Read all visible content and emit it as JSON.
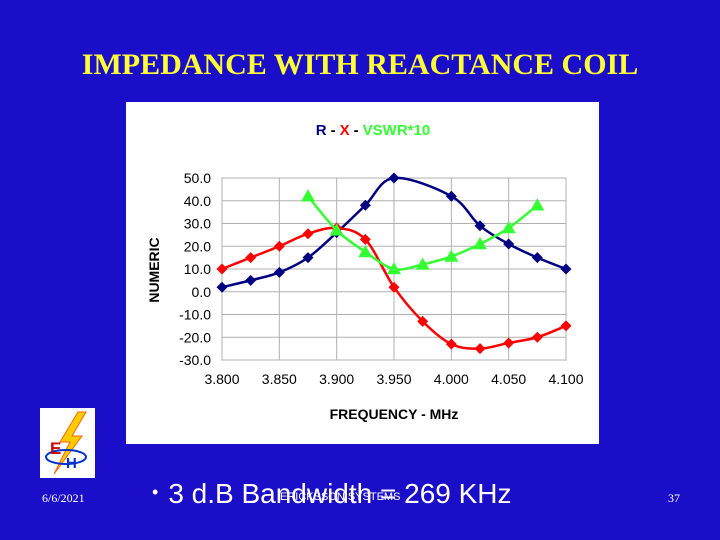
{
  "slide": {
    "title": "IMPEDANCE WITH REACTANCE COIL",
    "bullet": "3 d.B Bandwidth = 269 KHz",
    "footer_date": "6/6/2021",
    "footer_center": "ERICKSSON SYSTEMS",
    "page_number": "37",
    "logo_letters": "E H"
  },
  "chart_data": {
    "type": "line",
    "title": {
      "r": "R",
      "sep": "-",
      "x": "X",
      "vswr": "VSWR*10"
    },
    "xlabel": "FREQUENCY - MHz",
    "ylabel": "NUMERIC",
    "xlim": [
      3.8,
      4.1
    ],
    "ylim": [
      -30,
      50
    ],
    "x_ticks": [
      3.8,
      3.85,
      3.9,
      3.95,
      4.0,
      4.05,
      4.1
    ],
    "x_tick_labels": [
      "3.800",
      "3.850",
      "3.900",
      "3.950",
      "4.000",
      "4.050",
      "4.100"
    ],
    "y_ticks": [
      50,
      40,
      30,
      20,
      10,
      0,
      -10,
      -20,
      -30
    ],
    "y_tick_labels": [
      "50.0",
      "40.0",
      "30.0",
      "20.0",
      "10.0",
      "0.0",
      "-10.0",
      "-20.0",
      "-30.0"
    ],
    "grid": true,
    "series": [
      {
        "name": "R",
        "color": "#000080",
        "marker": "diamond",
        "x": [
          3.8,
          3.825,
          3.85,
          3.875,
          3.9,
          3.925,
          3.95,
          4.0,
          4.025,
          4.05,
          4.075,
          4.1
        ],
        "y": [
          2,
          5,
          8.5,
          15,
          26,
          38,
          50,
          42,
          29,
          21,
          15,
          10
        ]
      },
      {
        "name": "X",
        "color": "#ff0000",
        "marker": "diamond",
        "x": [
          3.8,
          3.825,
          3.85,
          3.875,
          3.9,
          3.925,
          3.95,
          3.975,
          4.0,
          4.025,
          4.05,
          4.075,
          4.1
        ],
        "y": [
          10,
          15,
          20,
          25.5,
          28,
          23,
          2,
          -13,
          -23,
          -25,
          -22.5,
          -20,
          -15
        ]
      },
      {
        "name": "VSWR*10",
        "color": "#33ff33",
        "marker": "triangle",
        "x": [
          3.875,
          3.9,
          3.925,
          3.95,
          3.975,
          4.0,
          4.025,
          4.05,
          4.075
        ],
        "y": [
          42,
          27,
          17.5,
          10,
          12,
          15.5,
          21,
          28,
          38
        ]
      }
    ]
  }
}
